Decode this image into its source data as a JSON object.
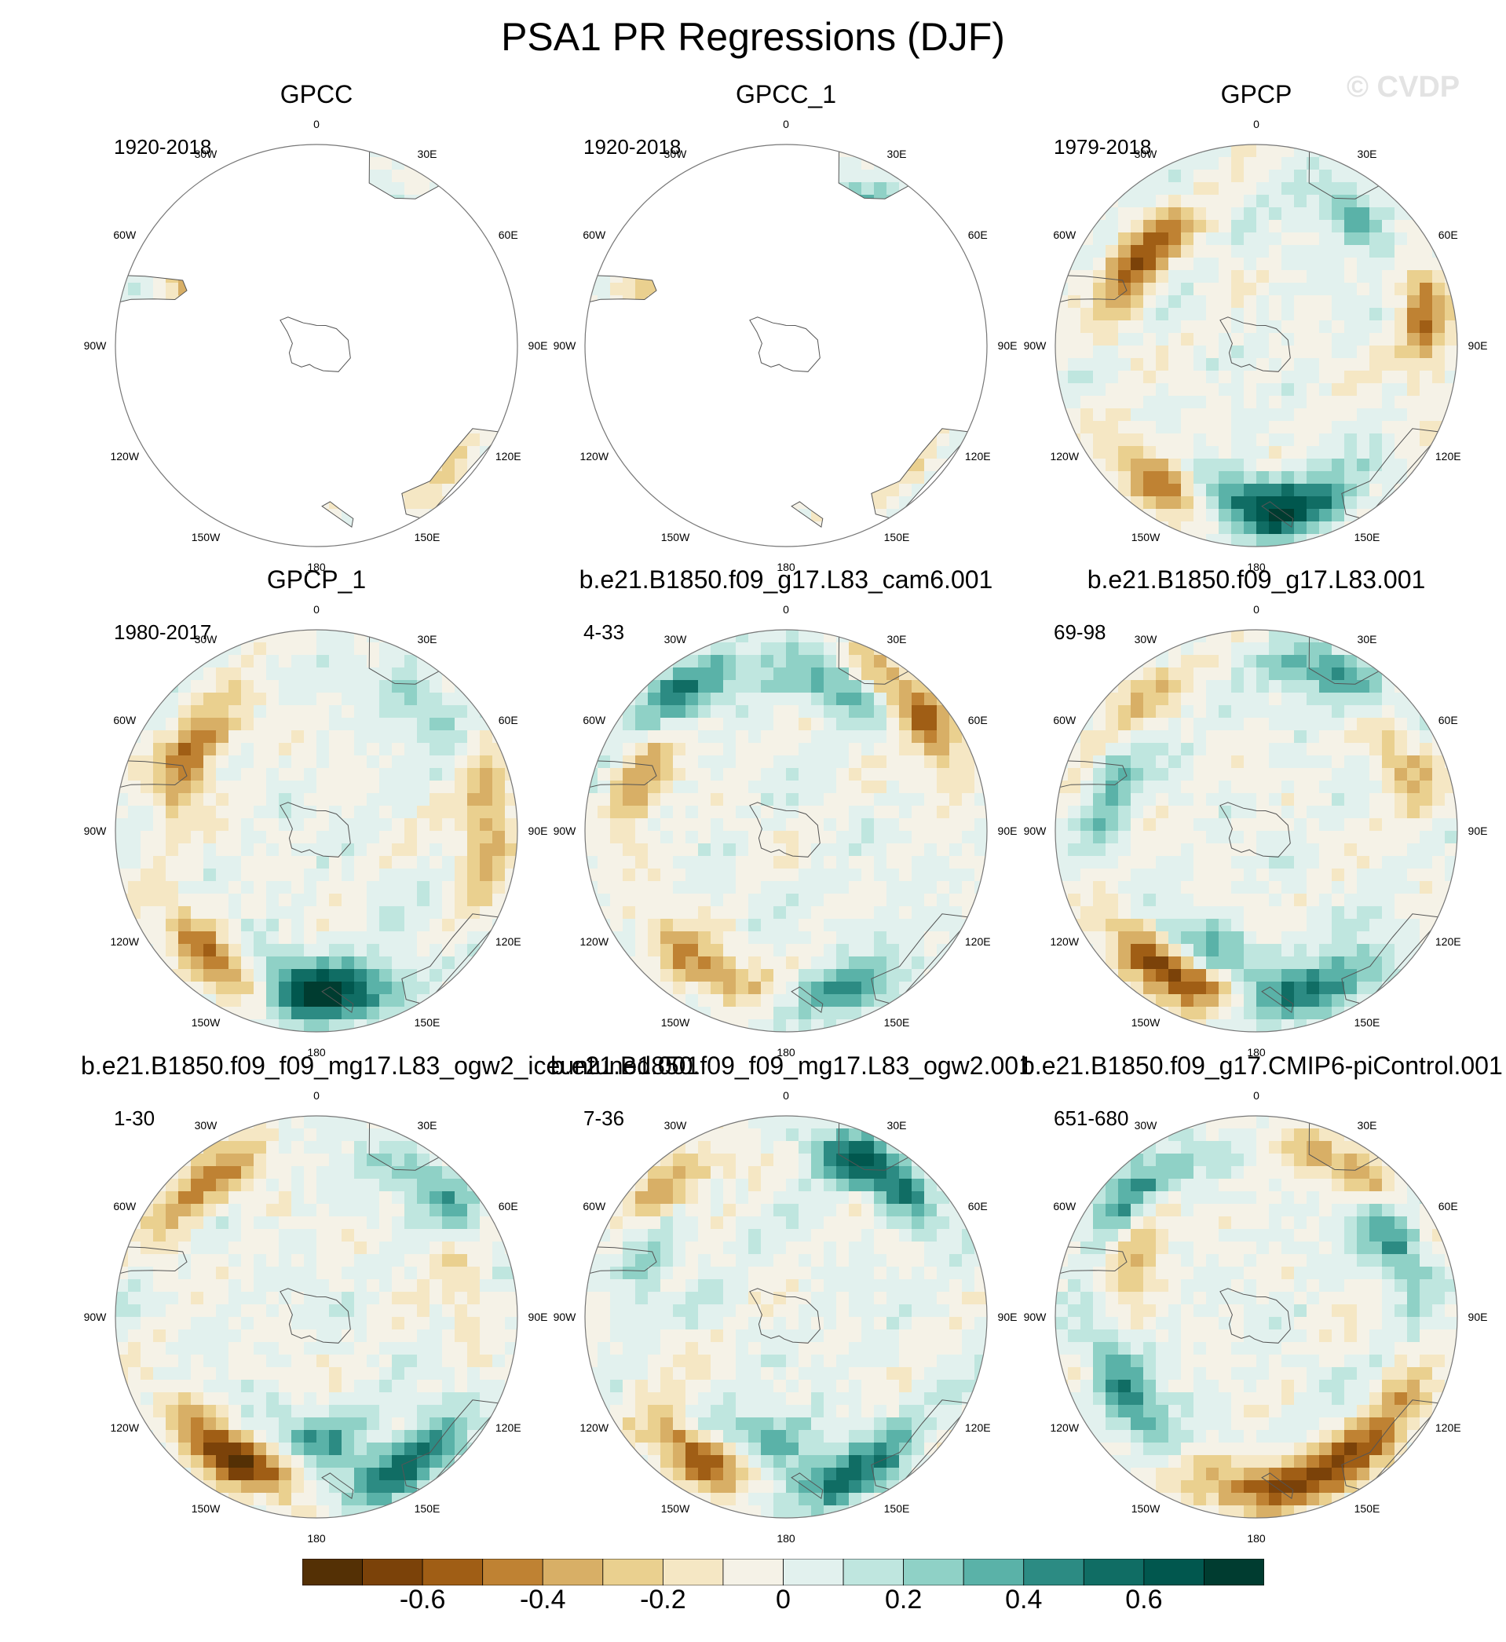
{
  "title": "PSA1 PR Regressions (DJF)",
  "watermark": "© CVDP",
  "lon_labels": [
    "0",
    "30E",
    "60E",
    "90E",
    "120E",
    "150E",
    "180",
    "150W",
    "120W",
    "90W",
    "60W",
    "30W"
  ],
  "panels": [
    {
      "title": "GPCC",
      "years": "1920-2018",
      "coverage": "land-only",
      "seed": 11,
      "blobs": [
        {
          "lon": 35,
          "colat": 0.75,
          "value": 0.25
        },
        {
          "lon": -55,
          "colat": 0.72,
          "value": -0.35
        },
        {
          "lon": 135,
          "colat": 0.85,
          "value": -0.2
        }
      ]
    },
    {
      "title": "GPCC_1",
      "years": "1920-2018",
      "coverage": "land-only",
      "seed": 13,
      "blobs": [
        {
          "lon": 30,
          "colat": 0.8,
          "value": 0.22
        },
        {
          "lon": -58,
          "colat": 0.74,
          "value": -0.3
        },
        {
          "lon": 140,
          "colat": 0.85,
          "value": -0.18
        }
      ]
    },
    {
      "title": "GPCP",
      "years": "1979-2018",
      "coverage": "full",
      "seed": 17,
      "blobs": [
        {
          "lon": -55,
          "colat": 0.72,
          "value": -0.55
        },
        {
          "lon": -150,
          "colat": 0.82,
          "value": -0.6
        },
        {
          "lon": 170,
          "colat": 0.85,
          "value": 0.6
        },
        {
          "lon": -170,
          "colat": 0.75,
          "value": 0.45
        },
        {
          "lon": 80,
          "colat": 0.85,
          "value": -0.45
        },
        {
          "lon": 40,
          "colat": 0.8,
          "value": 0.35
        }
      ]
    },
    {
      "title": "GPCP_1",
      "years": "1980-2017",
      "coverage": "full",
      "seed": 19,
      "blobs": [
        {
          "lon": -58,
          "colat": 0.72,
          "value": -0.55
        },
        {
          "lon": -145,
          "colat": 0.82,
          "value": -0.6
        },
        {
          "lon": 175,
          "colat": 0.85,
          "value": 0.6
        },
        {
          "lon": -170,
          "colat": 0.75,
          "value": 0.45
        },
        {
          "lon": 85,
          "colat": 0.85,
          "value": -0.45
        },
        {
          "lon": 45,
          "colat": 0.82,
          "value": 0.3
        }
      ]
    },
    {
      "title": "b.e21.B1850.f09_g17.L83_cam6.001",
      "years": "4-33",
      "coverage": "full",
      "seed": 23,
      "blobs": [
        {
          "lon": -40,
          "colat": 0.85,
          "value": 0.55
        },
        {
          "lon": -65,
          "colat": 0.78,
          "value": -0.5
        },
        {
          "lon": 45,
          "colat": 0.88,
          "value": -0.6
        },
        {
          "lon": 20,
          "colat": 0.78,
          "value": 0.45
        },
        {
          "lon": -150,
          "colat": 0.8,
          "value": -0.45
        },
        {
          "lon": 160,
          "colat": 0.85,
          "value": 0.4
        }
      ]
    },
    {
      "title": "b.e21.B1850.f09_g17.L83.001",
      "years": "69-98",
      "coverage": "full",
      "seed": 29,
      "blobs": [
        {
          "lon": -50,
          "colat": 0.85,
          "value": -0.45
        },
        {
          "lon": -65,
          "colat": 0.78,
          "value": 0.5
        },
        {
          "lon": 30,
          "colat": 0.85,
          "value": 0.5
        },
        {
          "lon": 60,
          "colat": 0.8,
          "value": -0.4
        },
        {
          "lon": -150,
          "colat": 0.82,
          "value": -0.7
        },
        {
          "lon": 160,
          "colat": 0.85,
          "value": 0.55
        },
        {
          "lon": -160,
          "colat": 0.65,
          "value": 0.4
        }
      ]
    },
    {
      "title": "b.e21.B1850.f09_f09_mg17.L83_ogw2_iceuntuned.001",
      "years": "1-30",
      "coverage": "full",
      "seed": 31,
      "blobs": [
        {
          "lon": -150,
          "colat": 0.82,
          "value": -0.7
        },
        {
          "lon": 150,
          "colat": 0.85,
          "value": 0.6
        },
        {
          "lon": 45,
          "colat": 0.85,
          "value": 0.45
        },
        {
          "lon": -40,
          "colat": 0.85,
          "value": -0.4
        },
        {
          "lon": 70,
          "colat": 0.78,
          "value": -0.3
        },
        {
          "lon": 180,
          "colat": 0.6,
          "value": 0.35
        }
      ]
    },
    {
      "title": "b.e21.B1850.f09_f09_mg17.L83_ogw2.001",
      "years": "7-36",
      "coverage": "full",
      "seed": 37,
      "blobs": [
        {
          "lon": -45,
          "colat": 0.85,
          "value": -0.55
        },
        {
          "lon": -60,
          "colat": 0.78,
          "value": 0.45
        },
        {
          "lon": 30,
          "colat": 0.85,
          "value": 0.6
        },
        {
          "lon": -150,
          "colat": 0.82,
          "value": -0.6
        },
        {
          "lon": 160,
          "colat": 0.85,
          "value": 0.55
        },
        {
          "lon": -170,
          "colat": 0.62,
          "value": 0.4
        }
      ]
    },
    {
      "title": "b.e21.B1850.f09_g17.CMIP6-piControl.001",
      "years": "651-680",
      "coverage": "full",
      "seed": 41,
      "blobs": [
        {
          "lon": 35,
          "colat": 0.85,
          "value": -0.55
        },
        {
          "lon": 55,
          "colat": 0.8,
          "value": 0.6
        },
        {
          "lon": -45,
          "colat": 0.85,
          "value": 0.55
        },
        {
          "lon": -60,
          "colat": 0.7,
          "value": -0.45
        },
        {
          "lon": 175,
          "colat": 0.85,
          "value": -0.6
        },
        {
          "lon": 135,
          "colat": 0.85,
          "value": -0.45
        },
        {
          "lon": -120,
          "colat": 0.75,
          "value": 0.45
        }
      ]
    }
  ],
  "colorbar": {
    "levels": [
      -0.7,
      -0.6,
      -0.5,
      -0.4,
      -0.3,
      -0.2,
      -0.1,
      0,
      0.1,
      0.2,
      0.3,
      0.4,
      0.5,
      0.6,
      0.7
    ],
    "tick_labels": [
      "-0.6",
      "-0.4",
      "-0.2",
      "0",
      "0.2",
      "0.4",
      "0.6"
    ],
    "colors": [
      "#543005",
      "#7b4209",
      "#a05e15",
      "#bf8233",
      "#d8af66",
      "#ead08f",
      "#f5e7c4",
      "#f5f2e7",
      "#e2f1ee",
      "#bfe6df",
      "#8fd1c6",
      "#5ab2a8",
      "#2c8b83",
      "#106d64",
      "#01574e",
      "#003c30"
    ]
  }
}
